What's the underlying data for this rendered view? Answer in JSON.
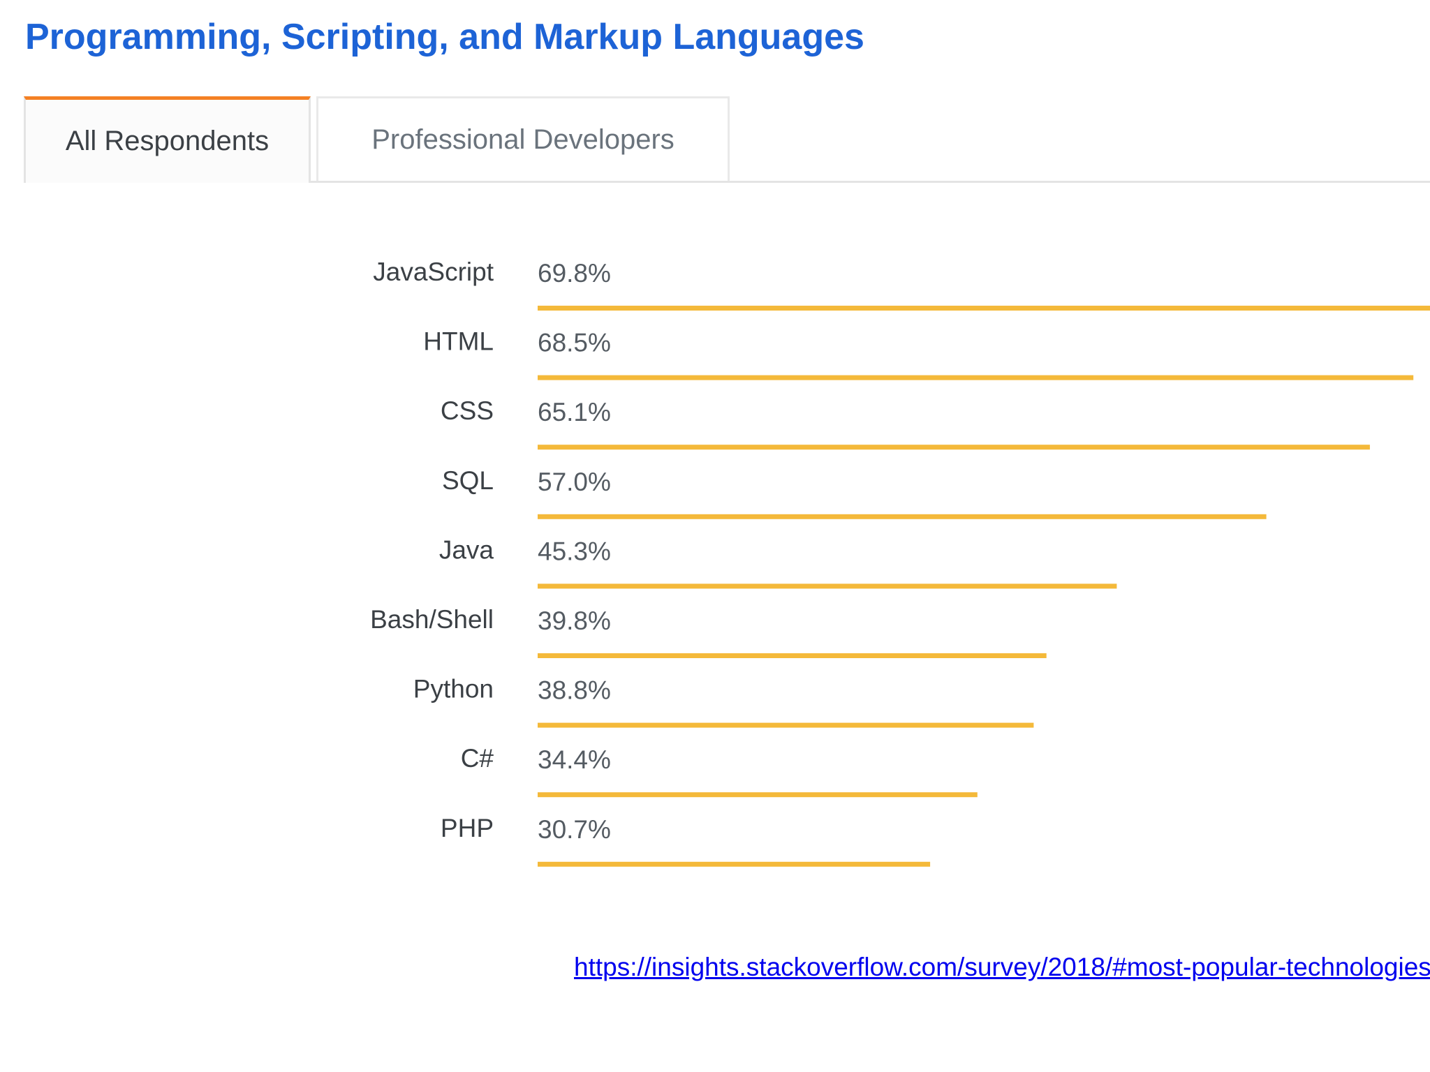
{
  "page": {
    "title": "Programming, Scripting, and Markup Languages"
  },
  "tabs": [
    {
      "label": "All Respondents",
      "active": true
    },
    {
      "label": "Professional Developers",
      "active": false
    }
  ],
  "chart_data": {
    "type": "bar",
    "orientation": "horizontal",
    "categories": [
      "JavaScript",
      "HTML",
      "CSS",
      "SQL",
      "Java",
      "Bash/Shell",
      "Python",
      "C#",
      "PHP"
    ],
    "values": [
      69.8,
      68.5,
      65.1,
      57.0,
      45.3,
      39.8,
      38.8,
      34.4,
      30.7
    ],
    "value_labels": [
      "69.8%",
      "68.5%",
      "65.1%",
      "57.0%",
      "45.3%",
      "39.8%",
      "38.8%",
      "34.4%",
      "30.7%"
    ],
    "unit": "%",
    "xlim": [
      0,
      69.8
    ],
    "grid": false,
    "bar_color": "#f4b93a",
    "label_color": "#3b4045",
    "value_color": "#545b62"
  },
  "source": {
    "link_text": "https://insights.stackoverflow.com/survey/2018/#most-popular-technologies"
  }
}
